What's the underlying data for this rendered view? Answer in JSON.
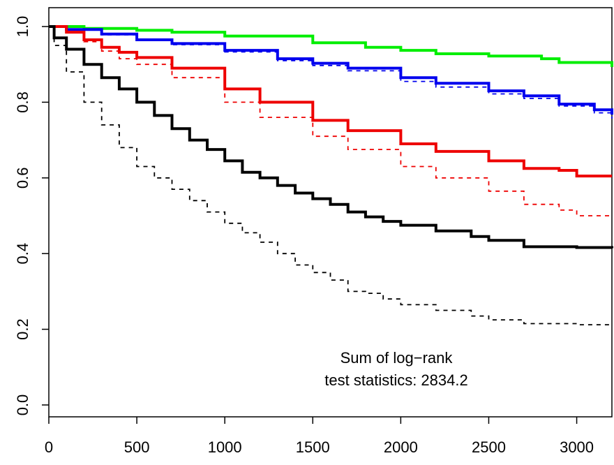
{
  "chart_data": {
    "type": "line",
    "title": "",
    "xlabel": "",
    "ylabel": "",
    "xlim": [
      0,
      3200
    ],
    "ylim": [
      0,
      1
    ],
    "xticks": [
      0,
      500,
      1000,
      1500,
      2000,
      2500,
      3000
    ],
    "yticks": [
      0.0,
      0.2,
      0.4,
      0.6,
      0.8,
      1.0
    ],
    "xtick_labels": [
      "0",
      "500",
      "1000",
      "1500",
      "2000",
      "2500",
      "3000"
    ],
    "ytick_labels": [
      "0.0",
      "0.2",
      "0.4",
      "0.6",
      "0.8",
      "1.0"
    ],
    "grid": false,
    "step": true,
    "annotation": [
      "Sum of log−rank",
      "test statistics: 2834.2"
    ],
    "series": [
      {
        "color": "#00ee00",
        "style": "solid",
        "x": [
          0,
          200,
          500,
          700,
          1000,
          1500,
          1800,
          2000,
          2200,
          2500,
          2800,
          2900,
          3200
        ],
        "y": [
          1.0,
          0.995,
          0.99,
          0.985,
          0.975,
          0.957,
          0.945,
          0.937,
          0.928,
          0.922,
          0.915,
          0.905,
          0.893
        ]
      },
      {
        "color": "#0000ee",
        "style": "solid",
        "x": [
          0,
          100,
          300,
          500,
          700,
          1000,
          1300,
          1500,
          1700,
          2000,
          2200,
          2500,
          2700,
          2900,
          3100,
          3200
        ],
        "y": [
          1.0,
          0.992,
          0.98,
          0.965,
          0.955,
          0.937,
          0.915,
          0.903,
          0.89,
          0.865,
          0.85,
          0.83,
          0.817,
          0.795,
          0.78,
          0.767
        ]
      },
      {
        "color": "#0000ee",
        "style": "dashed",
        "x": [
          0,
          100,
          300,
          500,
          700,
          1000,
          1300,
          1500,
          1700,
          2000,
          2200,
          2500,
          2700,
          2900,
          3100,
          3200
        ],
        "y": [
          1.0,
          0.992,
          0.978,
          0.963,
          0.952,
          0.933,
          0.91,
          0.897,
          0.883,
          0.855,
          0.84,
          0.822,
          0.81,
          0.79,
          0.772,
          0.757
        ]
      },
      {
        "color": "#ee0000",
        "style": "solid",
        "x": [
          0,
          100,
          200,
          300,
          400,
          500,
          700,
          1000,
          1200,
          1500,
          1700,
          2000,
          2200,
          2500,
          2700,
          2900,
          3000,
          3200
        ],
        "y": [
          1.0,
          0.985,
          0.965,
          0.945,
          0.932,
          0.918,
          0.89,
          0.835,
          0.8,
          0.752,
          0.725,
          0.69,
          0.67,
          0.645,
          0.625,
          0.62,
          0.605,
          0.605
        ]
      },
      {
        "color": "#ee0000",
        "style": "dashed",
        "x": [
          0,
          100,
          200,
          300,
          400,
          500,
          700,
          1000,
          1200,
          1500,
          1700,
          2000,
          2200,
          2500,
          2700,
          2900,
          3000,
          3200
        ],
        "y": [
          1.0,
          0.985,
          0.96,
          0.935,
          0.915,
          0.9,
          0.865,
          0.8,
          0.76,
          0.71,
          0.675,
          0.63,
          0.6,
          0.565,
          0.53,
          0.515,
          0.5,
          0.5
        ]
      },
      {
        "color": "#000000",
        "style": "solid",
        "x": [
          0,
          30,
          100,
          200,
          300,
          400,
          500,
          600,
          700,
          800,
          900,
          1000,
          1100,
          1200,
          1300,
          1400,
          1500,
          1600,
          1700,
          1800,
          1900,
          2000,
          2200,
          2400,
          2500,
          2700,
          3000,
          3200
        ],
        "y": [
          1.0,
          0.97,
          0.94,
          0.9,
          0.865,
          0.835,
          0.8,
          0.765,
          0.73,
          0.7,
          0.675,
          0.645,
          0.615,
          0.6,
          0.58,
          0.56,
          0.545,
          0.53,
          0.51,
          0.497,
          0.485,
          0.475,
          0.46,
          0.445,
          0.435,
          0.418,
          0.416,
          0.414
        ]
      },
      {
        "color": "#000000",
        "style": "dashed",
        "x": [
          0,
          30,
          100,
          200,
          300,
          400,
          500,
          600,
          700,
          800,
          900,
          1000,
          1100,
          1200,
          1300,
          1400,
          1500,
          1600,
          1700,
          1800,
          1900,
          2000,
          2200,
          2400,
          2500,
          2700,
          3000,
          3200
        ],
        "y": [
          1.0,
          0.95,
          0.88,
          0.8,
          0.74,
          0.68,
          0.63,
          0.6,
          0.57,
          0.54,
          0.51,
          0.48,
          0.455,
          0.43,
          0.4,
          0.37,
          0.35,
          0.33,
          0.3,
          0.295,
          0.28,
          0.265,
          0.25,
          0.235,
          0.225,
          0.215,
          0.212,
          0.21
        ]
      }
    ]
  }
}
